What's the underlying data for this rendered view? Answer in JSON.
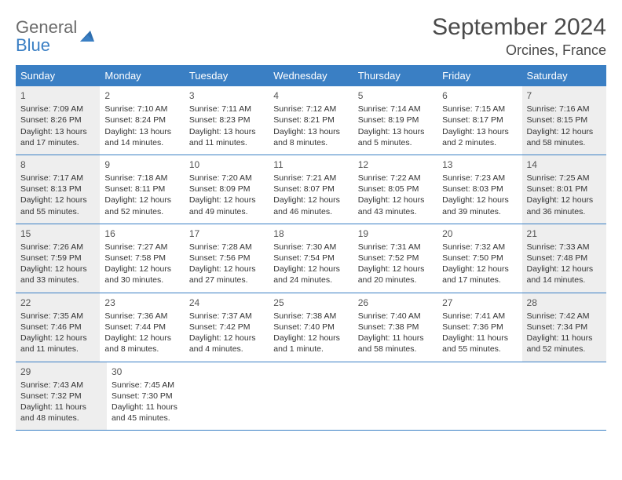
{
  "logo": {
    "general": "General",
    "blue": "Blue"
  },
  "title": {
    "month": "September 2024",
    "location": "Orcines, France"
  },
  "dayHeaders": [
    "Sunday",
    "Monday",
    "Tuesday",
    "Wednesday",
    "Thursday",
    "Friday",
    "Saturday"
  ],
  "colors": {
    "accent": "#3a7fc4",
    "shaded": "#eeeeee",
    "text": "#333333",
    "background": "#ffffff"
  },
  "weeks": [
    [
      {
        "num": "1",
        "shaded": true,
        "sunrise": "Sunrise: 7:09 AM",
        "sunset": "Sunset: 8:26 PM",
        "daylight": "Daylight: 13 hours and 17 minutes."
      },
      {
        "num": "2",
        "shaded": false,
        "sunrise": "Sunrise: 7:10 AM",
        "sunset": "Sunset: 8:24 PM",
        "daylight": "Daylight: 13 hours and 14 minutes."
      },
      {
        "num": "3",
        "shaded": false,
        "sunrise": "Sunrise: 7:11 AM",
        "sunset": "Sunset: 8:23 PM",
        "daylight": "Daylight: 13 hours and 11 minutes."
      },
      {
        "num": "4",
        "shaded": false,
        "sunrise": "Sunrise: 7:12 AM",
        "sunset": "Sunset: 8:21 PM",
        "daylight": "Daylight: 13 hours and 8 minutes."
      },
      {
        "num": "5",
        "shaded": false,
        "sunrise": "Sunrise: 7:14 AM",
        "sunset": "Sunset: 8:19 PM",
        "daylight": "Daylight: 13 hours and 5 minutes."
      },
      {
        "num": "6",
        "shaded": false,
        "sunrise": "Sunrise: 7:15 AM",
        "sunset": "Sunset: 8:17 PM",
        "daylight": "Daylight: 13 hours and 2 minutes."
      },
      {
        "num": "7",
        "shaded": true,
        "sunrise": "Sunrise: 7:16 AM",
        "sunset": "Sunset: 8:15 PM",
        "daylight": "Daylight: 12 hours and 58 minutes."
      }
    ],
    [
      {
        "num": "8",
        "shaded": true,
        "sunrise": "Sunrise: 7:17 AM",
        "sunset": "Sunset: 8:13 PM",
        "daylight": "Daylight: 12 hours and 55 minutes."
      },
      {
        "num": "9",
        "shaded": false,
        "sunrise": "Sunrise: 7:18 AM",
        "sunset": "Sunset: 8:11 PM",
        "daylight": "Daylight: 12 hours and 52 minutes."
      },
      {
        "num": "10",
        "shaded": false,
        "sunrise": "Sunrise: 7:20 AM",
        "sunset": "Sunset: 8:09 PM",
        "daylight": "Daylight: 12 hours and 49 minutes."
      },
      {
        "num": "11",
        "shaded": false,
        "sunrise": "Sunrise: 7:21 AM",
        "sunset": "Sunset: 8:07 PM",
        "daylight": "Daylight: 12 hours and 46 minutes."
      },
      {
        "num": "12",
        "shaded": false,
        "sunrise": "Sunrise: 7:22 AM",
        "sunset": "Sunset: 8:05 PM",
        "daylight": "Daylight: 12 hours and 43 minutes."
      },
      {
        "num": "13",
        "shaded": false,
        "sunrise": "Sunrise: 7:23 AM",
        "sunset": "Sunset: 8:03 PM",
        "daylight": "Daylight: 12 hours and 39 minutes."
      },
      {
        "num": "14",
        "shaded": true,
        "sunrise": "Sunrise: 7:25 AM",
        "sunset": "Sunset: 8:01 PM",
        "daylight": "Daylight: 12 hours and 36 minutes."
      }
    ],
    [
      {
        "num": "15",
        "shaded": true,
        "sunrise": "Sunrise: 7:26 AM",
        "sunset": "Sunset: 7:59 PM",
        "daylight": "Daylight: 12 hours and 33 minutes."
      },
      {
        "num": "16",
        "shaded": false,
        "sunrise": "Sunrise: 7:27 AM",
        "sunset": "Sunset: 7:58 PM",
        "daylight": "Daylight: 12 hours and 30 minutes."
      },
      {
        "num": "17",
        "shaded": false,
        "sunrise": "Sunrise: 7:28 AM",
        "sunset": "Sunset: 7:56 PM",
        "daylight": "Daylight: 12 hours and 27 minutes."
      },
      {
        "num": "18",
        "shaded": false,
        "sunrise": "Sunrise: 7:30 AM",
        "sunset": "Sunset: 7:54 PM",
        "daylight": "Daylight: 12 hours and 24 minutes."
      },
      {
        "num": "19",
        "shaded": false,
        "sunrise": "Sunrise: 7:31 AM",
        "sunset": "Sunset: 7:52 PM",
        "daylight": "Daylight: 12 hours and 20 minutes."
      },
      {
        "num": "20",
        "shaded": false,
        "sunrise": "Sunrise: 7:32 AM",
        "sunset": "Sunset: 7:50 PM",
        "daylight": "Daylight: 12 hours and 17 minutes."
      },
      {
        "num": "21",
        "shaded": true,
        "sunrise": "Sunrise: 7:33 AM",
        "sunset": "Sunset: 7:48 PM",
        "daylight": "Daylight: 12 hours and 14 minutes."
      }
    ],
    [
      {
        "num": "22",
        "shaded": true,
        "sunrise": "Sunrise: 7:35 AM",
        "sunset": "Sunset: 7:46 PM",
        "daylight": "Daylight: 12 hours and 11 minutes."
      },
      {
        "num": "23",
        "shaded": false,
        "sunrise": "Sunrise: 7:36 AM",
        "sunset": "Sunset: 7:44 PM",
        "daylight": "Daylight: 12 hours and 8 minutes."
      },
      {
        "num": "24",
        "shaded": false,
        "sunrise": "Sunrise: 7:37 AM",
        "sunset": "Sunset: 7:42 PM",
        "daylight": "Daylight: 12 hours and 4 minutes."
      },
      {
        "num": "25",
        "shaded": false,
        "sunrise": "Sunrise: 7:38 AM",
        "sunset": "Sunset: 7:40 PM",
        "daylight": "Daylight: 12 hours and 1 minute."
      },
      {
        "num": "26",
        "shaded": false,
        "sunrise": "Sunrise: 7:40 AM",
        "sunset": "Sunset: 7:38 PM",
        "daylight": "Daylight: 11 hours and 58 minutes."
      },
      {
        "num": "27",
        "shaded": false,
        "sunrise": "Sunrise: 7:41 AM",
        "sunset": "Sunset: 7:36 PM",
        "daylight": "Daylight: 11 hours and 55 minutes."
      },
      {
        "num": "28",
        "shaded": true,
        "sunrise": "Sunrise: 7:42 AM",
        "sunset": "Sunset: 7:34 PM",
        "daylight": "Daylight: 11 hours and 52 minutes."
      }
    ],
    [
      {
        "num": "29",
        "shaded": true,
        "sunrise": "Sunrise: 7:43 AM",
        "sunset": "Sunset: 7:32 PM",
        "daylight": "Daylight: 11 hours and 48 minutes."
      },
      {
        "num": "30",
        "shaded": false,
        "sunrise": "Sunrise: 7:45 AM",
        "sunset": "Sunset: 7:30 PM",
        "daylight": "Daylight: 11 hours and 45 minutes."
      },
      null,
      null,
      null,
      null,
      null
    ]
  ]
}
